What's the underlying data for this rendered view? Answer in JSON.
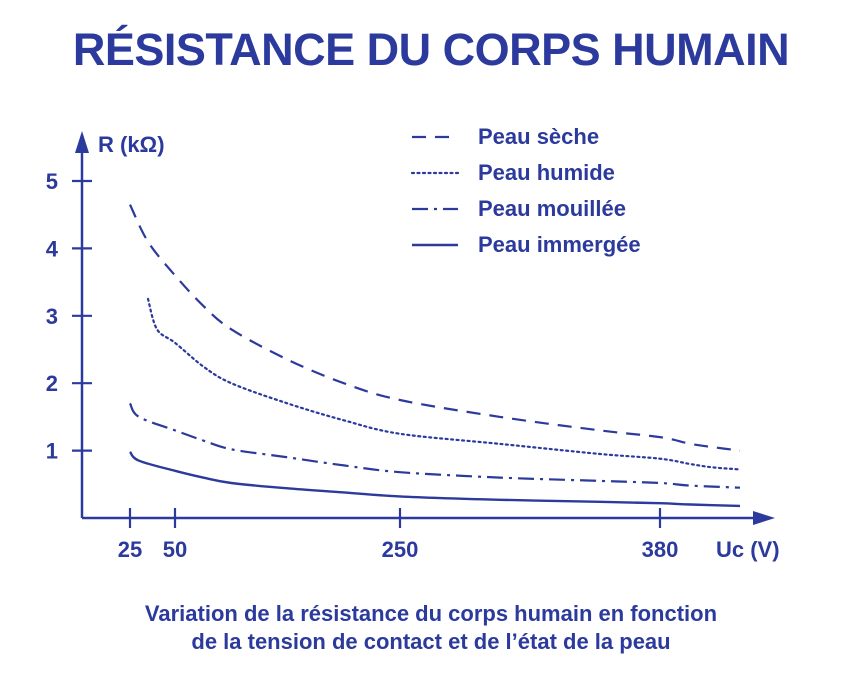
{
  "chart_data": {
    "type": "line",
    "title": "RÉSISTANCE DU CORPS HUMAIN",
    "ylabel": "R (kΩ)",
    "xlabel": "Uc (V)",
    "x_ticks": [
      25,
      50,
      250,
      380
    ],
    "y_ticks": [
      1,
      2,
      3,
      4,
      5
    ],
    "ylim": [
      0,
      5.4
    ],
    "grid": false,
    "legend_position": "top-right",
    "color": "#2b3a9c",
    "series": [
      {
        "name": "Peau sèche",
        "style": "dashed",
        "points": [
          [
            25,
            4.65
          ],
          [
            35,
            4.1
          ],
          [
            50,
            3.6
          ],
          [
            75,
            3.15
          ],
          [
            100,
            2.8
          ],
          [
            150,
            2.35
          ],
          [
            200,
            2.0
          ],
          [
            250,
            1.75
          ],
          [
            300,
            1.5
          ],
          [
            350,
            1.3
          ],
          [
            380,
            1.2
          ],
          [
            420,
            1.1
          ],
          [
            450,
            1.05
          ],
          [
            485,
            1.0
          ]
        ]
      },
      {
        "name": "Peau humide",
        "style": "dotted",
        "points": [
          [
            35,
            3.25
          ],
          [
            40,
            2.8
          ],
          [
            50,
            2.6
          ],
          [
            75,
            2.25
          ],
          [
            100,
            2.0
          ],
          [
            150,
            1.7
          ],
          [
            200,
            1.45
          ],
          [
            250,
            1.25
          ],
          [
            300,
            1.1
          ],
          [
            350,
            0.95
          ],
          [
            380,
            0.88
          ],
          [
            420,
            0.8
          ],
          [
            450,
            0.75
          ],
          [
            485,
            0.72
          ]
        ]
      },
      {
        "name": "Peau mouillée",
        "style": "dash-dot",
        "points": [
          [
            25,
            1.7
          ],
          [
            30,
            1.5
          ],
          [
            50,
            1.3
          ],
          [
            75,
            1.15
          ],
          [
            100,
            1.02
          ],
          [
            150,
            0.9
          ],
          [
            200,
            0.78
          ],
          [
            250,
            0.68
          ],
          [
            300,
            0.6
          ],
          [
            350,
            0.55
          ],
          [
            380,
            0.52
          ],
          [
            420,
            0.48
          ],
          [
            485,
            0.45
          ]
        ]
      },
      {
        "name": "Peau immergée",
        "style": "solid",
        "points": [
          [
            25,
            0.98
          ],
          [
            30,
            0.85
          ],
          [
            50,
            0.7
          ],
          [
            75,
            0.6
          ],
          [
            100,
            0.52
          ],
          [
            150,
            0.44
          ],
          [
            200,
            0.38
          ],
          [
            250,
            0.32
          ],
          [
            300,
            0.27
          ],
          [
            350,
            0.24
          ],
          [
            380,
            0.22
          ],
          [
            420,
            0.2
          ],
          [
            485,
            0.18
          ]
        ]
      }
    ]
  },
  "caption": {
    "line1": "Variation de la résistance du corps humain en fonction",
    "line2": "de la tension de contact et de l’état de la peau"
  }
}
